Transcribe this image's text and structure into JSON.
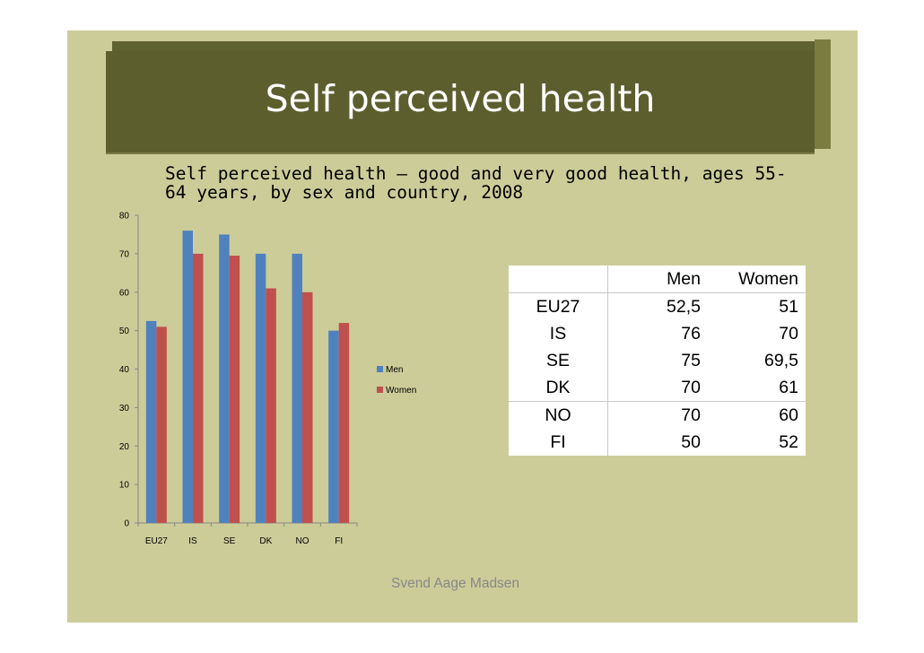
{
  "slide": {
    "title": "Self perceived health",
    "subtitle_line1": "Self perceived health – good and very good health, ages 55-",
    "subtitle_line2": "64 years, by sex and country, 2008",
    "footer": "Svend Aage Madsen"
  },
  "colors": {
    "slide_bg": "#cccc99",
    "title_bg": "#5c5e2e",
    "men": "#4f81bd",
    "women": "#c0504d"
  },
  "chart_data": {
    "type": "bar",
    "categories": [
      "EU27",
      "IS",
      "SE",
      "DK",
      "NO",
      "FI"
    ],
    "series": [
      {
        "name": "Men",
        "values": [
          52.5,
          76,
          75,
          70,
          70,
          50
        ]
      },
      {
        "name": "Women",
        "values": [
          51,
          70,
          69.5,
          61,
          60,
          52
        ]
      }
    ],
    "ylim": [
      0,
      80
    ],
    "yticks": [
      0,
      10,
      20,
      30,
      40,
      50,
      60,
      70,
      80
    ],
    "legend": "right",
    "grid": false,
    "title": "",
    "xlabel": "",
    "ylabel": ""
  },
  "table": {
    "headers": [
      "",
      "Men",
      "Women"
    ],
    "rows": [
      [
        "EU27",
        "52,5",
        "51"
      ],
      [
        "IS",
        "76",
        "70"
      ],
      [
        "SE",
        "75",
        "69,5"
      ],
      [
        "DK",
        "70",
        "61"
      ],
      [
        "NO",
        "70",
        "60"
      ],
      [
        "FI",
        "50",
        "52"
      ]
    ]
  }
}
